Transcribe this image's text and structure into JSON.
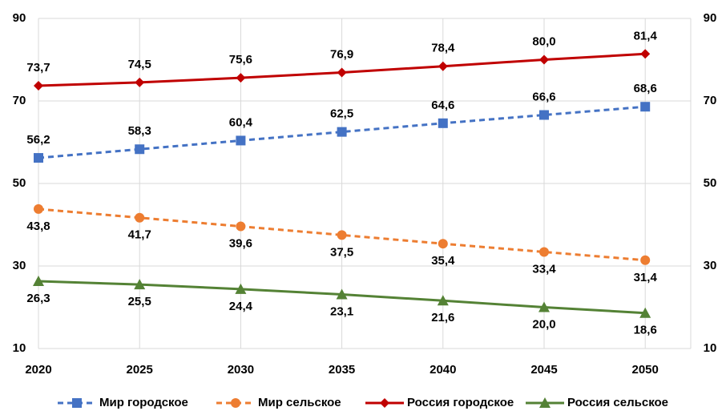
{
  "chart_data": {
    "type": "line",
    "categories": [
      "2020",
      "2025",
      "2030",
      "2035",
      "2040",
      "2045",
      "2050"
    ],
    "series": [
      {
        "name": "Мир городское",
        "color": "#4472c4",
        "dash": true,
        "marker": "square",
        "label_side": "above",
        "values": [
          56.2,
          58.3,
          60.4,
          62.5,
          64.6,
          66.6,
          68.6
        ],
        "value_labels": [
          "56,2",
          "58,3",
          "60,4",
          "62,5",
          "64,6",
          "66,6",
          "68,6"
        ]
      },
      {
        "name": "Мир сельское",
        "color": "#ed7d31",
        "dash": true,
        "marker": "circle",
        "label_side": "below",
        "values": [
          43.8,
          41.7,
          39.6,
          37.5,
          35.4,
          33.4,
          31.4
        ],
        "value_labels": [
          "43,8",
          "41,7",
          "39,6",
          "37,5",
          "35,4",
          "33,4",
          "31,4"
        ]
      },
      {
        "name": "Россия городское",
        "color": "#c00000",
        "dash": false,
        "marker": "diamond",
        "label_side": "above",
        "values": [
          73.7,
          74.5,
          75.6,
          76.9,
          78.4,
          80.0,
          81.4
        ],
        "value_labels": [
          "73,7",
          "74,5",
          "75,6",
          "76,9",
          "78,4",
          "80,0",
          "81,4"
        ]
      },
      {
        "name": "Россия сельское",
        "color": "#548235",
        "dash": false,
        "marker": "triangle",
        "label_side": "below",
        "values": [
          26.3,
          25.5,
          24.4,
          23.1,
          21.6,
          20.0,
          18.6
        ],
        "value_labels": [
          "26,3",
          "25,5",
          "24,4",
          "23,1",
          "21,6",
          "20,0",
          "18,6"
        ]
      }
    ],
    "ylim": [
      10,
      90
    ],
    "yticks": [
      10,
      30,
      50,
      70,
      90
    ],
    "y2lim": [
      10,
      90
    ],
    "y2ticks": [
      10,
      30,
      50,
      70,
      90
    ],
    "grid": true,
    "legend": "bottom"
  }
}
